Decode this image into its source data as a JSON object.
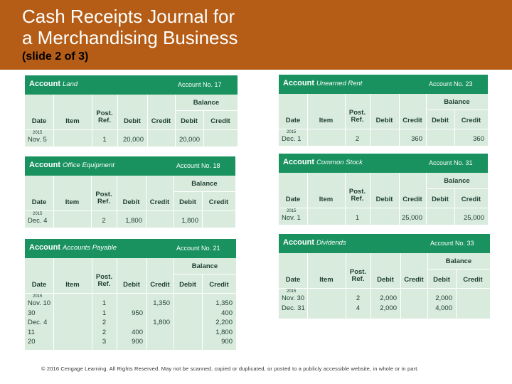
{
  "slide": {
    "title_line1": "Cash Receipts Journal for",
    "title_line2": "a Merchandising Business",
    "subtitle": "(slide 2 of 3)",
    "footer": "© 2016 Cengage Learning. All Rights Reserved. May not be scanned, copied or duplicated, or posted to a publicly accessible website, in whole or in part."
  },
  "common": {
    "account_word": "Account",
    "balance": "Balance",
    "col_date": "Date",
    "col_item": "Item",
    "col_post1": "Post.",
    "col_post2": "Ref.",
    "col_debit": "Debit",
    "col_credit": "Credit"
  },
  "ledgers": {
    "land": {
      "name": "Land",
      "number": "Account No. 17",
      "year": "2015",
      "rows": [
        {
          "date": "Nov. 5",
          "ref": "1",
          "debit": "20,000",
          "credit": "",
          "bal_debit": "20,000",
          "bal_credit": ""
        }
      ]
    },
    "office_equipment": {
      "name": "Office Equipment",
      "number": "Account No. 18",
      "year": "2015",
      "rows": [
        {
          "date": "Dec. 4",
          "ref": "2",
          "debit": "1,800",
          "credit": "",
          "bal_debit": "1,800",
          "bal_credit": ""
        }
      ]
    },
    "accounts_payable": {
      "name": "Accounts Payable",
      "number": "Account No. 21",
      "year": "2015",
      "rows": [
        {
          "date": "Nov. 10",
          "ref": "1",
          "debit": "",
          "credit": "1,350",
          "bal_debit": "",
          "bal_credit": "1,350"
        },
        {
          "date": "30",
          "ref": "1",
          "debit": "950",
          "credit": "",
          "bal_debit": "",
          "bal_credit": "400"
        },
        {
          "date": "Dec.   4",
          "ref": "2",
          "debit": "",
          "credit": "1,800",
          "bal_debit": "",
          "bal_credit": "2,200"
        },
        {
          "date": "11",
          "ref": "2",
          "debit": "400",
          "credit": "",
          "bal_debit": "",
          "bal_credit": "1,800"
        },
        {
          "date": "20",
          "ref": "3",
          "debit": "900",
          "credit": "",
          "bal_debit": "",
          "bal_credit": "900"
        }
      ]
    },
    "unearned_rent": {
      "name": "Unearned Rent",
      "number": "Account No. 23",
      "year": "2015",
      "rows": [
        {
          "date": "Dec. 1",
          "ref": "2",
          "debit": "",
          "credit": "360",
          "bal_debit": "",
          "bal_credit": "360"
        }
      ]
    },
    "common_stock": {
      "name": "Common Stock",
      "number": "Account No. 31",
      "year": "2015",
      "rows": [
        {
          "date": "Nov. 1",
          "ref": "1",
          "debit": "",
          "credit": "25,000",
          "bal_debit": "",
          "bal_credit": "25,000"
        }
      ]
    },
    "dividends": {
      "name": "Dividends",
      "number": "Account No. 33",
      "year": "2015",
      "rows": [
        {
          "date": "Nov. 30",
          "ref": "2",
          "debit": "2,000",
          "credit": "",
          "bal_debit": "2,000",
          "bal_credit": ""
        },
        {
          "date": "Dec. 31",
          "ref": "4",
          "debit": "2,000",
          "credit": "",
          "bal_debit": "4,000",
          "bal_credit": ""
        }
      ]
    }
  }
}
